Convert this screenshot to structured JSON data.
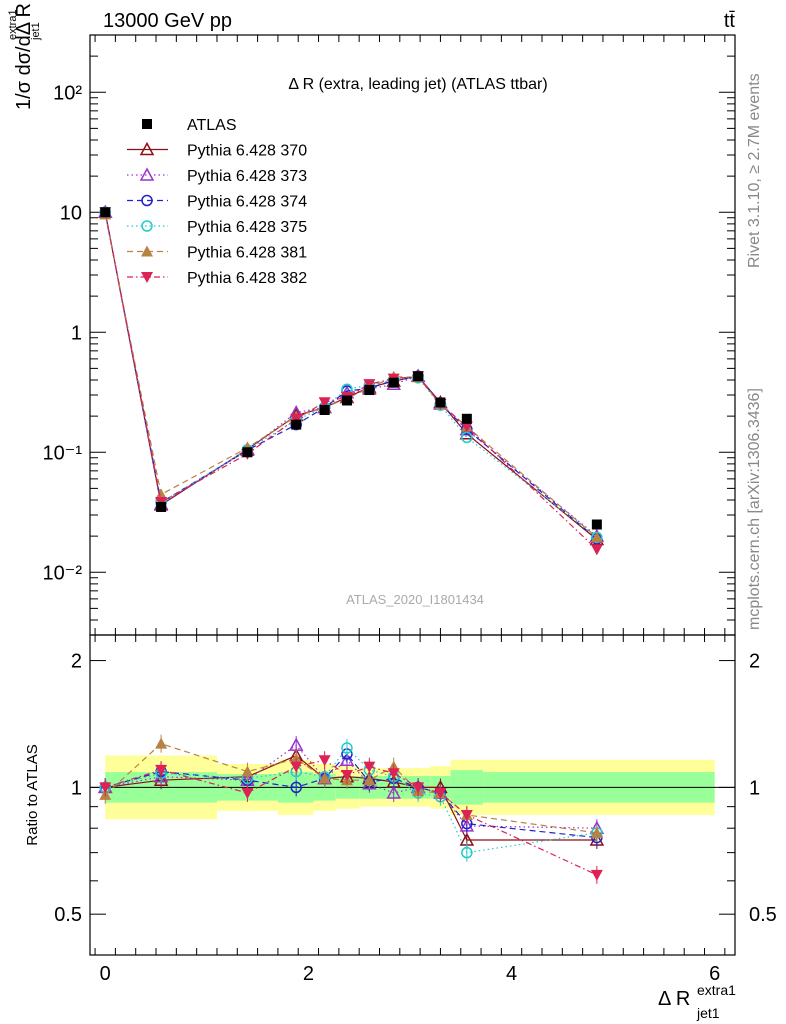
{
  "header": {
    "left": "13000 GeV pp",
    "right": "tt̄"
  },
  "side_labels": {
    "rivet": "Rivet 3.1.10, ≥ 2.7M events",
    "mcplots": "mcplots.cern.ch [arXiv:1306.3436]"
  },
  "chart_data": {
    "type": "line",
    "title": "Δ R (extra, leading jet) (ATLAS ttbar)",
    "analysis_label": "ATLAS_2020_I1801434",
    "xlabel": {
      "main": "Δ R",
      "sup": "extra1",
      "sub": "jet1"
    },
    "ylabel": {
      "text": "1/σ dσ/dΔ R",
      "sup": "extra1",
      "sub": "jet1"
    },
    "ratio_ylabel": "Ratio to ATLAS",
    "xlim": [
      -0.15,
      6.2
    ],
    "ylim": [
      0.003,
      300
    ],
    "y_scale": "log",
    "ratio_ylim": [
      0.4,
      2.3
    ],
    "ratio_y_scale": "log",
    "x_ticks": [
      "0",
      "2",
      "4",
      "6"
    ],
    "y_ticks": [
      "10⁻²",
      "10⁻¹",
      "1",
      "10",
      "10²"
    ],
    "ratio_ticks": [
      "0.5",
      "1",
      "2"
    ],
    "legend_position": "top-left",
    "x": [
      0.0,
      0.55,
      1.4,
      1.88,
      2.16,
      2.38,
      2.6,
      2.84,
      3.08,
      3.3,
      3.56,
      4.84
    ],
    "bin_edges": [
      0.0,
      0.05,
      1.1,
      1.7,
      2.05,
      2.27,
      2.5,
      2.72,
      2.96,
      3.2,
      3.4,
      3.72,
      6.0
    ],
    "data": {
      "name": "ATLAS",
      "values": [
        10.0,
        0.035,
        0.1,
        0.17,
        0.225,
        0.27,
        0.33,
        0.38,
        0.43,
        0.26,
        0.19,
        0.025
      ],
      "band_inner": [
        0.92,
        0.92,
        0.93,
        0.92,
        0.93,
        0.94,
        0.94,
        0.94,
        0.94,
        0.94,
        0.91,
        0.92
      ],
      "band_outer": [
        0.84,
        0.84,
        0.88,
        0.86,
        0.88,
        0.89,
        0.9,
        0.9,
        0.9,
        0.89,
        0.86,
        0.86
      ]
    },
    "series": [
      {
        "name": "Pythia 6.428 370",
        "color": "#8b0f19",
        "marker": "triangle-open",
        "dash": "solid",
        "ratio": [
          1.0,
          1.04,
          1.06,
          1.19,
          1.05,
          1.06,
          1.05,
          1.03,
          1.0,
          1.0,
          0.75,
          0.75
        ]
      },
      {
        "name": "Pythia 6.428 373",
        "color": "#9933cc",
        "marker": "triangle-open",
        "dash": "dot",
        "ratio": [
          1.0,
          1.06,
          1.04,
          1.26,
          1.05,
          1.16,
          1.02,
          0.97,
          1.0,
          0.97,
          0.81,
          0.8
        ]
      },
      {
        "name": "Pythia 6.428 374",
        "color": "#2222cc",
        "marker": "circle-open",
        "dash": "dash",
        "ratio": [
          1.0,
          1.09,
          1.04,
          1.0,
          1.05,
          1.2,
          1.03,
          1.05,
          1.0,
          0.97,
          0.82,
          0.76
        ]
      },
      {
        "name": "Pythia 6.428 375",
        "color": "#22cccc",
        "marker": "circle-open",
        "dash": "dot",
        "ratio": [
          1.0,
          1.08,
          1.05,
          1.09,
          1.06,
          1.24,
          1.1,
          1.06,
          0.97,
          0.95,
          0.7,
          0.78
        ]
      },
      {
        "name": "Pythia 6.428 381",
        "color": "#b88244",
        "marker": "triangle-filled",
        "dash": "dash",
        "ratio": [
          0.96,
          1.27,
          1.09,
          1.17,
          1.05,
          1.04,
          1.04,
          1.12,
          0.98,
          0.97,
          0.86,
          0.78
        ]
      },
      {
        "name": "Pythia 6.428 382",
        "color": "#dd2255",
        "marker": "triangle-down-filled",
        "dash": "dashdot",
        "ratio": [
          1.0,
          1.1,
          0.97,
          1.12,
          1.16,
          1.07,
          1.12,
          1.08,
          1.0,
          0.97,
          0.86,
          0.62
        ]
      }
    ]
  }
}
